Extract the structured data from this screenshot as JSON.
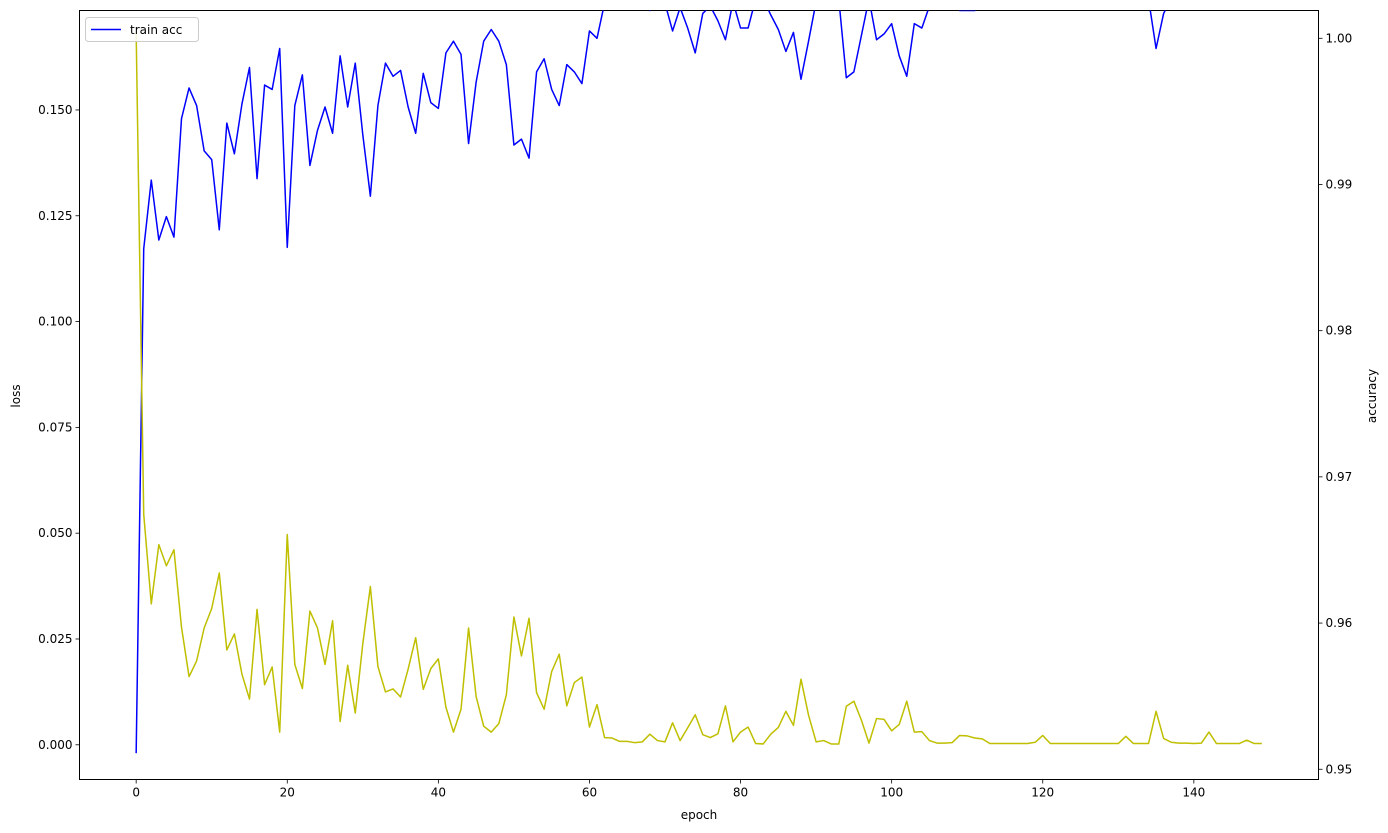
{
  "chart_data": {
    "type": "line",
    "xlabel": "epoch",
    "ylabel_left": "loss",
    "ylabel_right": "accuracy",
    "xlim": [
      -7.5,
      156.5
    ],
    "ylim_left": [
      -0.0082,
      0.1735
    ],
    "ylim_right": [
      0.9493,
      1.0019
    ],
    "x_ticks": [
      0,
      20,
      40,
      60,
      80,
      100,
      120,
      140
    ],
    "x_tick_labels": [
      "0",
      "20",
      "40",
      "60",
      "80",
      "100",
      "120",
      "140"
    ],
    "y_left_ticks": [
      0.0,
      0.025,
      0.05,
      0.075,
      0.1,
      0.125,
      0.15
    ],
    "y_left_tick_labels": [
      "0.000",
      "0.025",
      "0.050",
      "0.075",
      "0.100",
      "0.125",
      "0.150"
    ],
    "y_right_ticks": [
      0.95,
      0.96,
      0.97,
      0.98,
      0.99,
      1.0
    ],
    "y_right_tick_labels": [
      "0.95",
      "0.96",
      "0.97",
      "0.98",
      "0.99",
      "1.00"
    ],
    "grid": false,
    "legend_position": "upper-left",
    "series": [
      {
        "name": "train acc",
        "axis": "right",
        "color": "#0000ff",
        "values": [
          0.9511,
          0.9856,
          0.9903,
          0.9862,
          0.9878,
          0.9864,
          0.9945,
          0.9966,
          0.9954,
          0.9923,
          0.9917,
          0.9869,
          0.9942,
          0.9921,
          0.9955,
          0.998,
          0.9904,
          0.9968,
          0.9965,
          0.9993,
          0.9857,
          0.9954,
          0.9975,
          0.9913,
          0.9937,
          0.9953,
          0.9935,
          0.9988,
          0.9953,
          0.9983,
          0.9934,
          0.9892,
          0.9954,
          0.9983,
          0.9974,
          0.9978,
          0.9953,
          0.9935,
          0.9976,
          0.9956,
          0.9952,
          0.999,
          0.9998,
          0.9989,
          0.9928,
          0.997,
          0.9998,
          1.0006,
          0.9998,
          0.9982,
          0.9927,
          0.9931,
          0.9918,
          0.9977,
          0.9986,
          0.9965,
          0.9954,
          0.9982,
          0.9977,
          0.9969,
          1.0005,
          1.0,
          1.0024,
          1.0026,
          1.0026,
          1.0026,
          1.0028,
          1.0026,
          1.0019,
          1.0024,
          1.0024,
          1.0005,
          1.0021,
          1.0007,
          0.999,
          1.0017,
          1.0022,
          1.0012,
          0.9999,
          1.0025,
          1.0007,
          1.0007,
          1.0027,
          1.0027,
          1.0016,
          1.0006,
          0.9991,
          1.0004,
          0.9972,
          0.9998,
          1.0025,
          1.0025,
          1.0027,
          1.0027,
          0.9973,
          0.9977,
          1.0002,
          1.0027,
          0.9999,
          1.0003,
          1.001,
          0.9988,
          0.9974,
          1.001,
          1.0007,
          1.0022,
          1.0027,
          1.0027,
          1.0027,
          1.0019,
          1.0019,
          1.0019,
          1.0023,
          1.0027,
          1.0027,
          1.0027,
          1.0027,
          1.0027,
          1.0027,
          1.0025,
          1.0021,
          1.0027,
          1.0027,
          1.0027,
          1.0027,
          1.0027,
          1.0027,
          1.0027,
          1.0027,
          1.0027,
          1.0027,
          1.0024,
          1.0027,
          1.0027,
          1.0027,
          0.9993,
          1.0017,
          1.0027,
          1.0027,
          1.0027,
          1.0027,
          1.0025,
          1.0023,
          1.0027,
          1.0027,
          1.0027,
          1.0027,
          1.0025,
          1.0027,
          1.0027
        ]
      },
      {
        "name": "",
        "axis": "left",
        "color": "#bfbf00",
        "values": [
          0.1682,
          0.0545,
          0.0333,
          0.0473,
          0.0423,
          0.0461,
          0.0278,
          0.0161,
          0.0198,
          0.0276,
          0.0322,
          0.0406,
          0.0224,
          0.0262,
          0.0167,
          0.0108,
          0.032,
          0.0142,
          0.0184,
          0.003,
          0.0497,
          0.019,
          0.0133,
          0.0316,
          0.0276,
          0.019,
          0.0293,
          0.0055,
          0.0188,
          0.0075,
          0.0239,
          0.0374,
          0.0185,
          0.0125,
          0.0132,
          0.0113,
          0.0179,
          0.0253,
          0.0131,
          0.018,
          0.0203,
          0.0089,
          0.003,
          0.0084,
          0.0276,
          0.0114,
          0.0044,
          0.003,
          0.005,
          0.0118,
          0.0302,
          0.021,
          0.0299,
          0.0123,
          0.0084,
          0.0173,
          0.0214,
          0.0092,
          0.0147,
          0.016,
          0.0042,
          0.0095,
          0.0017,
          0.0016,
          0.0008,
          0.0008,
          0.0005,
          0.0007,
          0.0025,
          0.001,
          0.0007,
          0.0052,
          0.001,
          0.004,
          0.0071,
          0.0024,
          0.0017,
          0.0026,
          0.0092,
          0.0007,
          0.003,
          0.0042,
          0.0003,
          0.0002,
          0.0025,
          0.0041,
          0.0079,
          0.0046,
          0.0155,
          0.007,
          0.0007,
          0.001,
          0.0002,
          0.0002,
          0.0091,
          0.0103,
          0.0058,
          0.0004,
          0.0062,
          0.006,
          0.0033,
          0.0048,
          0.0103,
          0.003,
          0.0031,
          0.001,
          0.0004,
          0.0004,
          0.0005,
          0.0022,
          0.0021,
          0.0016,
          0.0014,
          0.0003,
          0.0003,
          0.0003,
          0.0003,
          0.0003,
          0.0003,
          0.0006,
          0.0022,
          0.0003,
          0.0003,
          0.0003,
          0.0003,
          0.0003,
          0.0003,
          0.0003,
          0.0003,
          0.0003,
          0.0003,
          0.002,
          0.0003,
          0.0003,
          0.0003,
          0.0079,
          0.0015,
          0.0006,
          0.0004,
          0.0004,
          0.0003,
          0.0004,
          0.003,
          0.0003,
          0.0003,
          0.0003,
          0.0003,
          0.0011,
          0.0003,
          0.0003
        ]
      }
    ]
  }
}
